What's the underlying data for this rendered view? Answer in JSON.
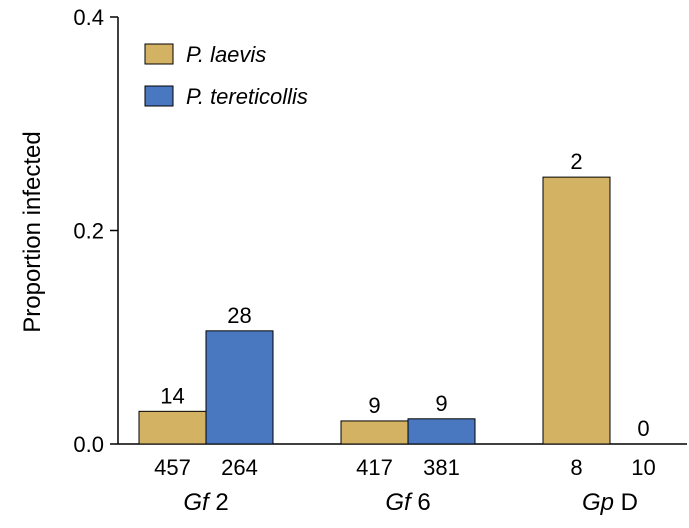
{
  "chart_data": {
    "type": "bar",
    "ylabel": "Proportion infected",
    "ylim": [
      0,
      0.4
    ],
    "yticks": [
      "0.0",
      "0.2",
      "0.4"
    ],
    "colors": {
      "P. laevis": "#d4b264",
      "P. tereticollis": "#4a78c0"
    },
    "groups": [
      {
        "label_italic": "Gf",
        "label_rest": " 2",
        "bars": [
          {
            "series": "P. laevis",
            "value": 0.0306,
            "count": "14",
            "n": "457"
          },
          {
            "series": "P. tereticollis",
            "value": 0.106,
            "count": "28",
            "n": "264"
          }
        ]
      },
      {
        "label_italic": "Gf",
        "label_rest": " 6",
        "bars": [
          {
            "series": "P. laevis",
            "value": 0.0216,
            "count": "9",
            "n": "417"
          },
          {
            "series": "P. tereticollis",
            "value": 0.0236,
            "count": "9",
            "n": "381"
          }
        ]
      },
      {
        "label_italic": "Gp",
        "label_rest": " D",
        "bars": [
          {
            "series": "P. laevis",
            "value": 0.25,
            "count": "2",
            "n": "8"
          },
          {
            "series": "P. tereticollis",
            "value": 0.0,
            "count": "0",
            "n": "10"
          }
        ]
      }
    ],
    "legend": {
      "position": "top-left",
      "entries": [
        "P. laevis",
        "P. tereticollis"
      ]
    }
  }
}
